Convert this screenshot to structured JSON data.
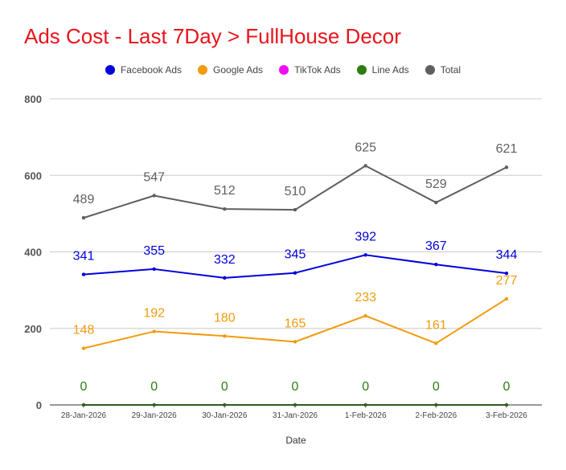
{
  "chart_data": {
    "type": "line",
    "title": "Ads Cost - Last 7Day > FullHouse Decor",
    "xlabel": "Date",
    "ylabel": "",
    "ylim": [
      0,
      800
    ],
    "yticks": [
      0,
      200,
      400,
      600,
      800
    ],
    "grid": true,
    "legend_position": "top",
    "categories": [
      "28-Jan-2026",
      "29-Jan-2026",
      "30-Jan-2026",
      "31-Jan-2026",
      "1-Feb-2026",
      "2-Feb-2026",
      "3-Feb-2026"
    ],
    "series": [
      {
        "name": "Facebook Ads",
        "color": "#0000dd",
        "values": [
          341,
          355,
          332,
          345,
          392,
          367,
          344
        ]
      },
      {
        "name": "Google Ads",
        "color": "#f29b0c",
        "values": [
          148,
          192,
          180,
          165,
          233,
          161,
          277
        ]
      },
      {
        "name": "TikTok Ads",
        "color": "#f20df2",
        "values": [
          0,
          0,
          0,
          0,
          0,
          0,
          0
        ]
      },
      {
        "name": "Line Ads",
        "color": "#2e7d11",
        "values": [
          0,
          0,
          0,
          0,
          0,
          0,
          0
        ]
      },
      {
        "name": "Total",
        "color": "#5f5f5f",
        "values": [
          489,
          547,
          512,
          510,
          625,
          529,
          621
        ]
      }
    ]
  }
}
